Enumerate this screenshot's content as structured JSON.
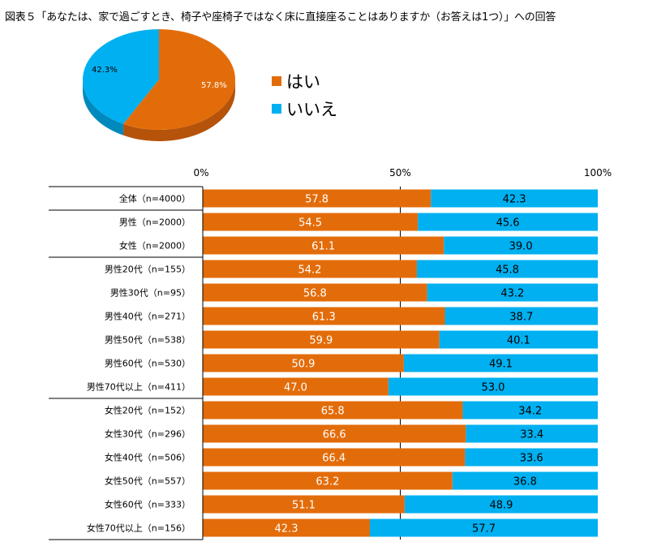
{
  "title": "図表５「あなたは、家で過ごすとき、椅子や座椅子ではなく床に直接座ることはありますか（お答えは1つ）」への回答",
  "colors": {
    "yes": "#E36C0A",
    "no": "#00B0F0",
    "yes_dark": "#B5530A",
    "no_dark": "#0089BD"
  },
  "chart_data": [
    {
      "type": "pie",
      "labels": [
        "はい",
        "いいえ"
      ],
      "values": [
        57.8,
        42.3
      ],
      "data_labels": [
        "57.8%",
        "42.3%"
      ],
      "legend": [
        "はい",
        "いいえ"
      ]
    },
    {
      "type": "bar",
      "orientation": "horizontal",
      "stacked": "percent",
      "xlim": [
        0,
        100
      ],
      "x_ticks": [
        "0%",
        "50%",
        "100%"
      ],
      "categories": [
        "全体（n=4000）",
        "男性（n=2000）",
        "女性（n=2000）",
        "男性20代（n=155）",
        "男性30代（n=95）",
        "男性40代（n=271）",
        "男性50代（n=538）",
        "男性60代（n=530）",
        "男性70代以上（n=411）",
        "女性20代（n=152）",
        "女性30代（n=296）",
        "女性40代（n=506）",
        "女性50代（n=557）",
        "女性60代（n=333）",
        "女性70代以上（n=156）"
      ],
      "series": [
        {
          "name": "はい",
          "values": [
            57.8,
            54.5,
            61.1,
            54.2,
            56.8,
            61.3,
            59.9,
            50.9,
            47.0,
            65.8,
            66.6,
            66.4,
            63.2,
            51.1,
            42.3
          ],
          "labels": [
            "57.8",
            "54.5",
            "61.1",
            "54.2",
            "56.8",
            "61.3",
            "59.9",
            "50.9",
            "47.0",
            "65.8",
            "66.6",
            "66.4",
            "63.2",
            "51.1",
            "42.3"
          ]
        },
        {
          "name": "いいえ",
          "values": [
            42.3,
            45.6,
            39.0,
            45.8,
            43.2,
            38.7,
            40.1,
            49.1,
            53.0,
            34.2,
            33.4,
            33.6,
            36.8,
            48.9,
            57.7
          ],
          "labels": [
            "42.3",
            "45.6",
            "39.0",
            "45.8",
            "43.2",
            "38.7",
            "40.1",
            "49.1",
            "53.0",
            "34.2",
            "33.4",
            "33.6",
            "36.8",
            "48.9",
            "57.7"
          ]
        }
      ]
    }
  ]
}
